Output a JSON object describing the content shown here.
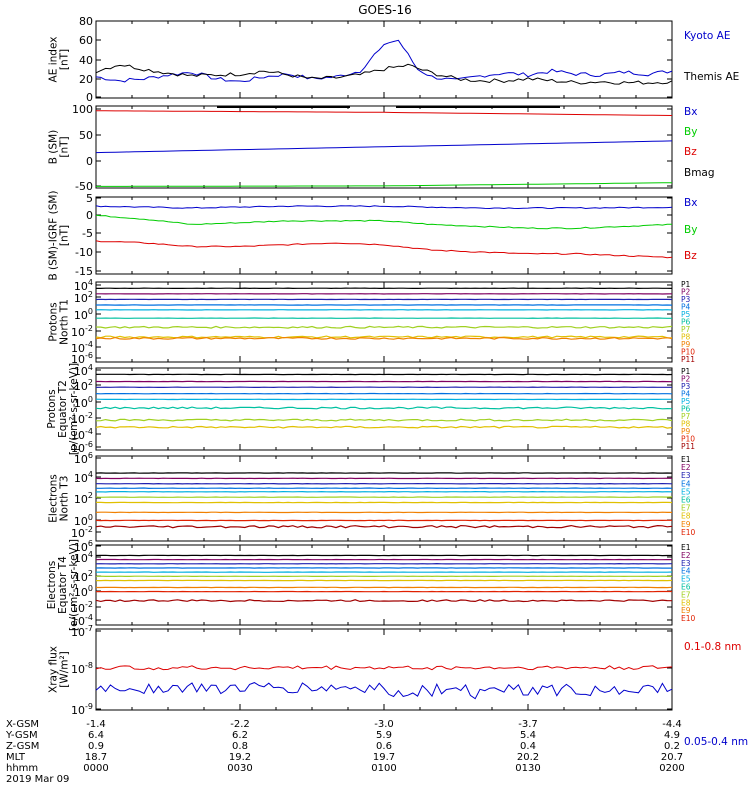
{
  "title": "GOES-16",
  "colors": {
    "axis": "#000000",
    "red": "#dd0000",
    "blue": "#0000cc",
    "green": "#00cc00",
    "black": "#000000"
  },
  "time": {
    "start_label": "0000",
    "end_label": "0200",
    "date": "2019 Mar 09"
  },
  "orbit_table": {
    "row_labels": [
      "X-GSM",
      "Y-GSM",
      "Z-GSM",
      "MLT",
      "hhmm"
    ],
    "columns": [
      [
        "-1.4",
        "6.4",
        "0.9",
        "18.7",
        "0000"
      ],
      [
        "-2.2",
        "6.2",
        "0.8",
        "19.2",
        "0030"
      ],
      [
        "-3.0",
        "5.9",
        "0.6",
        "19.7",
        "0100"
      ],
      [
        "-3.7",
        "5.4",
        "0.4",
        "20.2",
        "0130"
      ],
      [
        "-4.4",
        "4.9",
        "0.2",
        "20.7",
        "0200"
      ]
    ],
    "date": "2019 Mar 09"
  },
  "panels": [
    {
      "id": "ae",
      "ylabel": [
        "AE index",
        "[nT]"
      ],
      "ticks": [
        "80",
        "60",
        "40",
        "20",
        "0"
      ],
      "legend": [
        {
          "text": "Kyoto AE",
          "color": "#0000cc"
        },
        {
          "text": "Themis AE",
          "color": "#000000"
        }
      ]
    },
    {
      "id": "bsm",
      "ylabel": [
        "B (SM)",
        "[nT]"
      ],
      "ticks": [
        "100",
        "50",
        "0",
        "-50"
      ],
      "legend": [
        {
          "text": "Bx",
          "color": "#0000cc"
        },
        {
          "text": "By",
          "color": "#00cc00"
        },
        {
          "text": "Bz",
          "color": "#dd0000"
        },
        {
          "text": "Bmag",
          "color": "#000000"
        }
      ]
    },
    {
      "id": "bigrf",
      "ylabel": [
        "B (SM)-IGRF (SM)",
        "[nT]"
      ],
      "ticks": [
        "5",
        "0",
        "-5",
        "-10",
        "-15"
      ],
      "legend": [
        {
          "text": "Bx",
          "color": "#0000cc"
        },
        {
          "text": "By",
          "color": "#00cc00"
        },
        {
          "text": "Bz",
          "color": "#dd0000"
        }
      ]
    },
    {
      "id": "pn",
      "ylabel": [
        "Protons",
        "North T1"
      ],
      "ticks": [
        {
          "b": "10",
          "e": "4"
        },
        {
          "b": "10",
          "e": "2"
        },
        {
          "b": "10",
          "e": "0"
        },
        {
          "b": "10",
          "e": "-2"
        },
        {
          "b": "10",
          "e": "-4"
        },
        {
          "b": "10",
          "e": "-6"
        }
      ],
      "legend": [
        "P1",
        "P2",
        "P3",
        "P4",
        "P5",
        "P6",
        "P7",
        "P8",
        "P9",
        "P10",
        "P11"
      ]
    },
    {
      "id": "pe",
      "ylabel": [
        "Protons",
        "Equator T2",
        "[p/(cm²-s-sr-keV)]"
      ],
      "ticks": [
        {
          "b": "10",
          "e": "4"
        },
        {
          "b": "10",
          "e": "2"
        },
        {
          "b": "10",
          "e": "0"
        },
        {
          "b": "10",
          "e": "-2"
        },
        {
          "b": "10",
          "e": "-4"
        },
        {
          "b": "10",
          "e": "-6"
        }
      ],
      "legend": [
        "P1",
        "P2",
        "P3",
        "P4",
        "P5",
        "P6",
        "P7",
        "P8",
        "P9",
        "P10",
        "P11"
      ]
    },
    {
      "id": "en",
      "ylabel": [
        "Electrons",
        "North T3"
      ],
      "ticks": [
        {
          "b": "10",
          "e": "6"
        },
        {
          "b": "10",
          "e": "4"
        },
        {
          "b": "10",
          "e": "2"
        },
        {
          "b": "10",
          "e": "0"
        },
        {
          "b": "10",
          "e": "-2"
        }
      ],
      "legend": [
        "E1",
        "E2",
        "E3",
        "E4",
        "E5",
        "E6",
        "E7",
        "E8",
        "E9",
        "E10"
      ]
    },
    {
      "id": "ee",
      "ylabel": [
        "Electrons",
        "Equator T4",
        "[e/(cm²-s-sr-keV)]"
      ],
      "ticks": [
        {
          "b": "10",
          "e": "6"
        },
        {
          "b": "10",
          "e": "4"
        },
        {
          "b": "10",
          "e": "2"
        },
        {
          "b": "10",
          "e": "0"
        },
        {
          "b": "10",
          "e": "-2"
        },
        {
          "b": "10",
          "e": "-4"
        }
      ],
      "legend": [
        "E1",
        "E2",
        "E3",
        "E4",
        "E5",
        "E6",
        "E7",
        "E8",
        "E9",
        "E10"
      ]
    },
    {
      "id": "xray",
      "ylabel": [
        "Xray flux",
        "[W/m²]"
      ],
      "ticks": [
        {
          "b": "10",
          "e": "-7"
        },
        {
          "b": "10",
          "e": "-8"
        },
        {
          "b": "10",
          "e": "-9"
        }
      ],
      "legend": [
        {
          "text": "0.1-0.8 nm",
          "color": "#dd0000"
        },
        {
          "text": "0.05-0.4 nm",
          "color": "#0000cc"
        }
      ]
    }
  ],
  "chart_data": [
    {
      "type": "line",
      "panel": "ae",
      "title": "GOES-16",
      "ylabel": "AE index [nT]",
      "ylim": [
        0,
        80
      ],
      "x_range_min": [
        0,
        120
      ],
      "series": [
        {
          "name": "Kyoto AE",
          "color": "#0000cc",
          "x": [
            0,
            5,
            10,
            15,
            20,
            25,
            30,
            35,
            40,
            45,
            50,
            55,
            58,
            61,
            63,
            65,
            67,
            70,
            75,
            80,
            85,
            90,
            95,
            100,
            105,
            110,
            115,
            120
          ],
          "y": [
            22,
            18,
            20,
            24,
            27,
            20,
            17,
            22,
            25,
            20,
            22,
            28,
            45,
            58,
            60,
            45,
            30,
            22,
            18,
            23,
            26,
            24,
            28,
            25,
            24,
            27,
            25,
            28
          ]
        },
        {
          "name": "Themis AE",
          "color": "#000000",
          "x": [
            0,
            5,
            10,
            15,
            20,
            25,
            30,
            35,
            40,
            45,
            50,
            55,
            60,
            65,
            70,
            75,
            80,
            85,
            90,
            95,
            100,
            105,
            110,
            115,
            120
          ],
          "y": [
            28,
            35,
            30,
            26,
            23,
            24,
            25,
            28,
            24,
            20,
            21,
            24,
            30,
            34,
            26,
            20,
            18,
            18,
            20,
            18,
            16,
            17,
            16,
            16,
            17
          ]
        }
      ]
    },
    {
      "type": "line",
      "panel": "bsm",
      "ylabel": "B (SM) [nT]",
      "ylim": [
        -55,
        100
      ],
      "x_range_min": [
        0,
        120
      ],
      "series": [
        {
          "name": "Bx",
          "color": "#0000cc",
          "x": [
            0,
            120
          ],
          "y": [
            12,
            34
          ]
        },
        {
          "name": "By",
          "color": "#00cc00",
          "x": [
            0,
            60,
            120
          ],
          "y": [
            -52,
            -51,
            -45
          ]
        },
        {
          "name": "Bz",
          "color": "#dd0000",
          "x": [
            0,
            60,
            120
          ],
          "y": [
            91,
            88,
            82
          ]
        },
        {
          "name": "Bmag",
          "color": "#000000",
          "x": [
            0,
            120
          ],
          "y": [
            100,
            100
          ]
        }
      ]
    },
    {
      "type": "line",
      "panel": "bigrf",
      "ylabel": "B (SM)-IGRF (SM) [nT]",
      "ylim": [
        -16,
        5
      ],
      "x_range_min": [
        0,
        120
      ],
      "series": [
        {
          "name": "Bx",
          "color": "#0000cc",
          "x": [
            0,
            20,
            40,
            60,
            80,
            100,
            120
          ],
          "y": [
            2.5,
            2.0,
            2.5,
            2.5,
            2.0,
            2.0,
            2.2
          ]
        },
        {
          "name": "By",
          "color": "#00cc00",
          "x": [
            0,
            10,
            20,
            30,
            40,
            50,
            60,
            70,
            80,
            90,
            100,
            110,
            120
          ],
          "y": [
            0,
            -1,
            -2.5,
            -2,
            -1.5,
            -1.5,
            -1.5,
            -2.5,
            -3,
            -3.5,
            -3.5,
            -3,
            -2.5
          ]
        },
        {
          "name": "Bz",
          "color": "#dd0000",
          "x": [
            0,
            10,
            20,
            30,
            40,
            50,
            60,
            70,
            80,
            90,
            100,
            110,
            120
          ],
          "y": [
            -7,
            -7.5,
            -8.5,
            -8.5,
            -8,
            -7.5,
            -8,
            -9.5,
            -10,
            -10.5,
            -10.5,
            -11,
            -11.5
          ]
        }
      ]
    },
    {
      "type": "line",
      "panel": "pn",
      "ylabel": "Protons North T1",
      "log_ylim": [
        -7,
        4.5
      ],
      "x_range_min": [
        0,
        120
      ],
      "series": [
        {
          "name": "P1",
          "color": "#000000",
          "log_y": 3.6
        },
        {
          "name": "P2",
          "color": "#800060",
          "log_y": 2.8
        },
        {
          "name": "P3",
          "color": "#2020b0",
          "log_y": 2.0
        },
        {
          "name": "P4",
          "color": "#0070e0",
          "log_y": 1.2
        },
        {
          "name": "P5",
          "color": "#00b0e0",
          "log_y": 0.5
        },
        {
          "name": "P6",
          "color": "#00c0a0",
          "log_y": -0.7
        },
        {
          "name": "P7",
          "color": "#a0d020",
          "log_y": -2.0
        },
        {
          "name": "P8",
          "color": "#e0c000",
          "log_y": -3.4
        },
        {
          "name": "P9",
          "color": "#f08000",
          "log_y": -3.6
        }
      ]
    },
    {
      "type": "line",
      "panel": "pe",
      "ylabel": "Protons Equator T2",
      "log_ylim": [
        -7,
        4.5
      ],
      "x_range_min": [
        0,
        120
      ],
      "series": [
        {
          "name": "P1",
          "color": "#000000",
          "log_y": 3.6
        },
        {
          "name": "P2",
          "color": "#800060",
          "log_y": 2.6
        },
        {
          "name": "P3",
          "color": "#2020b0",
          "log_y": 1.8
        },
        {
          "name": "P4",
          "color": "#0070e0",
          "log_y": 0.9
        },
        {
          "name": "P5",
          "color": "#00b0e0",
          "log_y": 0.1
        },
        {
          "name": "P6",
          "color": "#00c0a0",
          "log_y": -1.1
        },
        {
          "name": "P7",
          "color": "#a0d020",
          "log_y": -2.8
        },
        {
          "name": "P8",
          "color": "#e0c000",
          "log_y": -3.8
        }
      ]
    },
    {
      "type": "line",
      "panel": "en",
      "ylabel": "Electrons North T3",
      "log_ylim": [
        -3,
        6.5
      ],
      "x_range_min": [
        0,
        120
      ],
      "series": [
        {
          "name": "E1",
          "color": "#000000",
          "log_y": 4.6
        },
        {
          "name": "E2",
          "color": "#800060",
          "log_y": 4.0
        },
        {
          "name": "E3",
          "color": "#2020b0",
          "log_y": 3.4
        },
        {
          "name": "E4",
          "color": "#0070e0",
          "log_y": 2.9
        },
        {
          "name": "E5",
          "color": "#00b0e0",
          "log_y": 2.5
        },
        {
          "name": "E6",
          "color": "#a0d020",
          "log_y": 1.9
        },
        {
          "name": "E7",
          "color": "#e0c000",
          "log_y": 1.3
        },
        {
          "name": "E8",
          "color": "#f08000",
          "log_y": 0.2
        },
        {
          "name": "E9",
          "color": "#e02000",
          "log_y": -0.7
        },
        {
          "name": "E10",
          "color": "#a00000",
          "log_y": -1.4
        }
      ]
    },
    {
      "type": "line",
      "panel": "ee",
      "ylabel": "Electrons Equator T4",
      "log_ylim": [
        -5,
        6.5
      ],
      "x_range_min": [
        0,
        120
      ],
      "series": [
        {
          "name": "E1",
          "color": "#000000",
          "log_y": 5.0
        },
        {
          "name": "E2",
          "color": "#800060",
          "log_y": 4.4
        },
        {
          "name": "E3",
          "color": "#2020b0",
          "log_y": 3.8
        },
        {
          "name": "E4",
          "color": "#0070e0",
          "log_y": 3.2
        },
        {
          "name": "E5",
          "color": "#00b0e0",
          "log_y": 2.6
        },
        {
          "name": "E6",
          "color": "#a0d020",
          "log_y": 2.0
        },
        {
          "name": "E7",
          "color": "#e0c000",
          "log_y": 1.4
        },
        {
          "name": "E8",
          "color": "#f08000",
          "log_y": 0.4
        },
        {
          "name": "E9",
          "color": "#e02000",
          "log_y": -0.2
        },
        {
          "name": "E10",
          "color": "#a00000",
          "log_y": -1.5
        }
      ]
    },
    {
      "type": "line",
      "panel": "xray",
      "ylabel": "Xray flux [W/m²]",
      "log_ylim": [
        -9.4,
        -7
      ],
      "x_range_min": [
        0,
        120
      ],
      "series": [
        {
          "name": "0.1-0.8 nm",
          "color": "#dd0000",
          "log_y_mean": -8.15
        },
        {
          "name": "0.05-0.4 nm",
          "color": "#0000cc",
          "log_y_mean": -8.75
        }
      ]
    }
  ]
}
